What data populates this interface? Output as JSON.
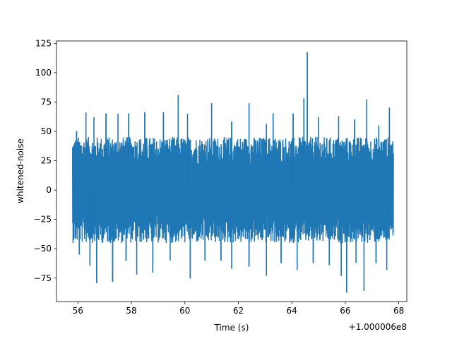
{
  "chart_data": {
    "type": "line",
    "title": "",
    "xlabel": "Time (s)",
    "ylabel": "whitened-noise",
    "x_offset_label": "+1.000006e8",
    "xlim": [
      55.2,
      68.3
    ],
    "ylim": [
      -95,
      127
    ],
    "xticks": [
      56,
      58,
      60,
      62,
      64,
      66,
      68
    ],
    "yticks": [
      -75,
      -50,
      -25,
      0,
      25,
      50,
      75,
      100,
      125
    ],
    "x_range": [
      55.8,
      67.8
    ],
    "grid": false,
    "line_color": "#1f77b4",
    "series": [
      {
        "values_summary": "dense whitened noise, mostly between -50 and 50",
        "typical_upper_envelope": 45,
        "typical_lower_envelope": -45,
        "peaks": [
          {
            "x": 55.95,
            "y": 50
          },
          {
            "x": 56.3,
            "y": 66
          },
          {
            "x": 56.6,
            "y": 62
          },
          {
            "x": 57.05,
            "y": 65
          },
          {
            "x": 57.5,
            "y": 65
          },
          {
            "x": 57.9,
            "y": 65
          },
          {
            "x": 58.5,
            "y": 66
          },
          {
            "x": 59.2,
            "y": 66
          },
          {
            "x": 59.75,
            "y": 81
          },
          {
            "x": 60.1,
            "y": 65
          },
          {
            "x": 61.0,
            "y": 74
          },
          {
            "x": 61.75,
            "y": 58
          },
          {
            "x": 62.4,
            "y": 74
          },
          {
            "x": 63.05,
            "y": 56
          },
          {
            "x": 63.3,
            "y": 65
          },
          {
            "x": 64.05,
            "y": 65
          },
          {
            "x": 64.45,
            "y": 78
          },
          {
            "x": 64.58,
            "y": 117
          },
          {
            "x": 65.0,
            "y": 62
          },
          {
            "x": 65.75,
            "y": 63
          },
          {
            "x": 66.35,
            "y": 60
          },
          {
            "x": 66.8,
            "y": 77
          },
          {
            "x": 67.25,
            "y": 55
          },
          {
            "x": 67.65,
            "y": 70
          }
        ],
        "troughs": [
          {
            "x": 56.05,
            "y": -55
          },
          {
            "x": 56.45,
            "y": -64
          },
          {
            "x": 56.7,
            "y": -79
          },
          {
            "x": 57.3,
            "y": -78
          },
          {
            "x": 57.8,
            "y": -60
          },
          {
            "x": 58.2,
            "y": -72
          },
          {
            "x": 58.8,
            "y": -70
          },
          {
            "x": 59.45,
            "y": -60
          },
          {
            "x": 60.2,
            "y": -75
          },
          {
            "x": 60.75,
            "y": -60
          },
          {
            "x": 61.35,
            "y": -60
          },
          {
            "x": 61.75,
            "y": -67
          },
          {
            "x": 62.4,
            "y": -65
          },
          {
            "x": 63.05,
            "y": -73
          },
          {
            "x": 63.6,
            "y": -62
          },
          {
            "x": 64.2,
            "y": -68
          },
          {
            "x": 64.8,
            "y": -62
          },
          {
            "x": 65.4,
            "y": -64
          },
          {
            "x": 65.85,
            "y": -73
          },
          {
            "x": 66.05,
            "y": -87
          },
          {
            "x": 66.4,
            "y": -62
          },
          {
            "x": 66.7,
            "y": -86
          },
          {
            "x": 67.15,
            "y": -62
          },
          {
            "x": 67.55,
            "y": -68
          }
        ]
      }
    ]
  }
}
